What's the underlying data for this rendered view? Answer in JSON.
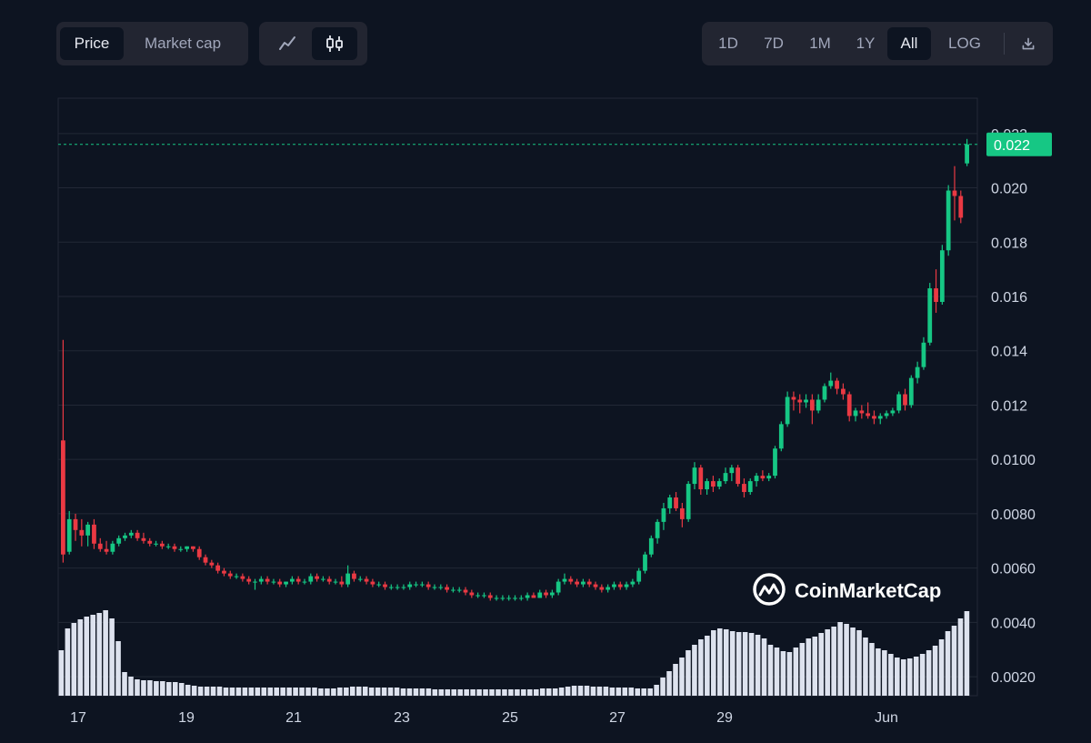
{
  "toolbar": {
    "price_label": "Price",
    "market_cap_label": "Market cap",
    "line_icon": "line-chart-icon",
    "candle_icon": "candlestick-icon",
    "ranges": [
      "1D",
      "7D",
      "1M",
      "1Y",
      "All",
      "LOG"
    ],
    "active_range": "All",
    "download_icon": "download-icon"
  },
  "watermark": "CoinMarketCap",
  "chart_data": {
    "type": "candlestick",
    "y_ticks": [
      "0.0020",
      "0.0040",
      "0.0060",
      "0.0080",
      "0.0100",
      "0.012",
      "0.014",
      "0.016",
      "0.018",
      "0.020",
      "0.022"
    ],
    "x_ticks": [
      "17",
      "19",
      "21",
      "23",
      "25",
      "27",
      "29",
      "Jun"
    ],
    "current_price_label": "0.022",
    "current_price": 0.0216,
    "ylim": [
      0.0013,
      0.0233
    ],
    "colors": {
      "up": "#16c784",
      "down": "#ea3943",
      "volume": "#dde2ee",
      "grid": "#222836"
    },
    "candles": [
      [
        0.0107,
        0.0144,
        0.0062,
        0.0065
      ],
      [
        0.0066,
        0.0081,
        0.0065,
        0.0078
      ],
      [
        0.0078,
        0.008,
        0.007,
        0.0074
      ],
      [
        0.0074,
        0.0078,
        0.0068,
        0.0072
      ],
      [
        0.0072,
        0.0077,
        0.0068,
        0.0076
      ],
      [
        0.0076,
        0.0078,
        0.0067,
        0.0069
      ],
      [
        0.0069,
        0.0071,
        0.0066,
        0.0067
      ],
      [
        0.0067,
        0.007,
        0.0065,
        0.0066
      ],
      [
        0.0066,
        0.007,
        0.0065,
        0.0069
      ],
      [
        0.0069,
        0.0072,
        0.0068,
        0.0071
      ],
      [
        0.0071,
        0.0073,
        0.007,
        0.0072
      ],
      [
        0.0072,
        0.0074,
        0.0071,
        0.0073
      ],
      [
        0.0073,
        0.0074,
        0.007,
        0.0071
      ],
      [
        0.0071,
        0.0073,
        0.0069,
        0.007
      ],
      [
        0.007,
        0.0071,
        0.0068,
        0.0069
      ],
      [
        0.0069,
        0.007,
        0.0068,
        0.0069
      ],
      [
        0.0069,
        0.007,
        0.0067,
        0.0068
      ],
      [
        0.0068,
        0.0069,
        0.0067,
        0.0068
      ],
      [
        0.0068,
        0.0069,
        0.0066,
        0.0067
      ],
      [
        0.0067,
        0.0068,
        0.0066,
        0.0067
      ],
      [
        0.0067,
        0.0068,
        0.0066,
        0.0068
      ],
      [
        0.0068,
        0.0068,
        0.0066,
        0.0067
      ],
      [
        0.0067,
        0.0068,
        0.0063,
        0.0064
      ],
      [
        0.0064,
        0.0065,
        0.0061,
        0.0062
      ],
      [
        0.0062,
        0.0063,
        0.006,
        0.0061
      ],
      [
        0.0061,
        0.0062,
        0.0058,
        0.0059
      ],
      [
        0.0059,
        0.006,
        0.0057,
        0.0058
      ],
      [
        0.0058,
        0.0059,
        0.0056,
        0.0057
      ],
      [
        0.0057,
        0.0058,
        0.0056,
        0.0057
      ],
      [
        0.0057,
        0.0058,
        0.0055,
        0.0056
      ],
      [
        0.0056,
        0.0057,
        0.0054,
        0.0055
      ],
      [
        0.0055,
        0.0056,
        0.0052,
        0.0055
      ],
      [
        0.0055,
        0.0057,
        0.0054,
        0.0056
      ],
      [
        0.0056,
        0.0057,
        0.0054,
        0.0055
      ],
      [
        0.0055,
        0.0056,
        0.0054,
        0.0055
      ],
      [
        0.0055,
        0.0056,
        0.0053,
        0.0054
      ],
      [
        0.0054,
        0.0055,
        0.0053,
        0.0055
      ],
      [
        0.0055,
        0.0057,
        0.0054,
        0.0056
      ],
      [
        0.0056,
        0.0057,
        0.0054,
        0.0055
      ],
      [
        0.0055,
        0.0056,
        0.0054,
        0.0055
      ],
      [
        0.0055,
        0.0058,
        0.0054,
        0.0057
      ],
      [
        0.0057,
        0.0058,
        0.0055,
        0.0056
      ],
      [
        0.0056,
        0.0057,
        0.0055,
        0.0056
      ],
      [
        0.0056,
        0.0057,
        0.0054,
        0.0055
      ],
      [
        0.0055,
        0.0056,
        0.0054,
        0.0055
      ],
      [
        0.0055,
        0.0057,
        0.0053,
        0.0054
      ],
      [
        0.0054,
        0.0061,
        0.0053,
        0.0058
      ],
      [
        0.0058,
        0.0059,
        0.0055,
        0.0056
      ],
      [
        0.0056,
        0.0057,
        0.0055,
        0.0056
      ],
      [
        0.0056,
        0.0057,
        0.0054,
        0.0055
      ],
      [
        0.0055,
        0.0056,
        0.0053,
        0.0054
      ],
      [
        0.0054,
        0.0055,
        0.0053,
        0.0054
      ],
      [
        0.0054,
        0.0055,
        0.0052,
        0.0053
      ],
      [
        0.0053,
        0.0054,
        0.0052,
        0.0053
      ],
      [
        0.0053,
        0.0054,
        0.0052,
        0.0053
      ],
      [
        0.0053,
        0.0054,
        0.0052,
        0.0053
      ],
      [
        0.0053,
        0.0055,
        0.0052,
        0.0054
      ],
      [
        0.0054,
        0.0055,
        0.0053,
        0.0054
      ],
      [
        0.0054,
        0.0055,
        0.0053,
        0.0054
      ],
      [
        0.0054,
        0.0055,
        0.0052,
        0.0053
      ],
      [
        0.0053,
        0.0054,
        0.0052,
        0.0053
      ],
      [
        0.0053,
        0.0054,
        0.0052,
        0.0053
      ],
      [
        0.0053,
        0.0054,
        0.0051,
        0.0052
      ],
      [
        0.0052,
        0.0053,
        0.0051,
        0.0052
      ],
      [
        0.0052,
        0.0053,
        0.0051,
        0.0052
      ],
      [
        0.0052,
        0.0053,
        0.005,
        0.0051
      ],
      [
        0.0051,
        0.0052,
        0.0049,
        0.005
      ],
      [
        0.005,
        0.0051,
        0.0049,
        0.005
      ],
      [
        0.005,
        0.0051,
        0.0049,
        0.005
      ],
      [
        0.005,
        0.0051,
        0.0048,
        0.0049
      ],
      [
        0.0049,
        0.005,
        0.0048,
        0.0049
      ],
      [
        0.0049,
        0.005,
        0.0048,
        0.0049
      ],
      [
        0.0049,
        0.005,
        0.0048,
        0.0049
      ],
      [
        0.0049,
        0.005,
        0.0048,
        0.0049
      ],
      [
        0.0049,
        0.005,
        0.0048,
        0.0049
      ],
      [
        0.0049,
        0.0051,
        0.0048,
        0.005
      ],
      [
        0.005,
        0.0051,
        0.0049,
        0.0049
      ],
      [
        0.0049,
        0.0052,
        0.0049,
        0.0051
      ],
      [
        0.0051,
        0.0052,
        0.0049,
        0.005
      ],
      [
        0.005,
        0.0052,
        0.0049,
        0.0051
      ],
      [
        0.0051,
        0.0056,
        0.005,
        0.0055
      ],
      [
        0.0055,
        0.0058,
        0.0054,
        0.0056
      ],
      [
        0.0056,
        0.0057,
        0.0054,
        0.0055
      ],
      [
        0.0055,
        0.0056,
        0.0053,
        0.0054
      ],
      [
        0.0054,
        0.0056,
        0.0053,
        0.0055
      ],
      [
        0.0055,
        0.0056,
        0.0053,
        0.0054
      ],
      [
        0.0054,
        0.0055,
        0.0052,
        0.0053
      ],
      [
        0.0053,
        0.0054,
        0.0051,
        0.0052
      ],
      [
        0.0052,
        0.0054,
        0.0051,
        0.0053
      ],
      [
        0.0053,
        0.0055,
        0.0052,
        0.0054
      ],
      [
        0.0054,
        0.0055,
        0.0052,
        0.0053
      ],
      [
        0.0053,
        0.0055,
        0.0052,
        0.0054
      ],
      [
        0.0054,
        0.0056,
        0.0053,
        0.0055
      ],
      [
        0.0055,
        0.006,
        0.0054,
        0.0059
      ],
      [
        0.0059,
        0.0066,
        0.0058,
        0.0065
      ],
      [
        0.0065,
        0.0072,
        0.0064,
        0.0071
      ],
      [
        0.0071,
        0.0078,
        0.0069,
        0.0077
      ],
      [
        0.0077,
        0.0084,
        0.0074,
        0.0082
      ],
      [
        0.0082,
        0.0087,
        0.008,
        0.0086
      ],
      [
        0.0086,
        0.0088,
        0.0081,
        0.0082
      ],
      [
        0.0082,
        0.0084,
        0.0075,
        0.0078
      ],
      [
        0.0078,
        0.0092,
        0.0077,
        0.0091
      ],
      [
        0.0091,
        0.0099,
        0.0089,
        0.0097
      ],
      [
        0.0097,
        0.0098,
        0.0087,
        0.0089
      ],
      [
        0.0089,
        0.0093,
        0.0087,
        0.0092
      ],
      [
        0.0092,
        0.0094,
        0.0088,
        0.009
      ],
      [
        0.009,
        0.0093,
        0.0089,
        0.0092
      ],
      [
        0.0092,
        0.0097,
        0.0091,
        0.0095
      ],
      [
        0.0095,
        0.0098,
        0.0092,
        0.0097
      ],
      [
        0.0097,
        0.0098,
        0.009,
        0.0091
      ],
      [
        0.0091,
        0.0093,
        0.0086,
        0.0088
      ],
      [
        0.0088,
        0.0093,
        0.0087,
        0.0092
      ],
      [
        0.0092,
        0.0095,
        0.009,
        0.0094
      ],
      [
        0.0094,
        0.0096,
        0.0092,
        0.0093
      ],
      [
        0.0093,
        0.0095,
        0.0092,
        0.0094
      ],
      [
        0.0094,
        0.0105,
        0.0093,
        0.0104
      ],
      [
        0.0104,
        0.0114,
        0.0103,
        0.0113
      ],
      [
        0.0113,
        0.0125,
        0.0112,
        0.0123
      ],
      [
        0.0123,
        0.0125,
        0.0118,
        0.0122
      ],
      [
        0.0122,
        0.0124,
        0.0117,
        0.0121
      ],
      [
        0.0121,
        0.0124,
        0.0119,
        0.0122
      ],
      [
        0.0122,
        0.0124,
        0.0113,
        0.0118
      ],
      [
        0.0118,
        0.0124,
        0.0117,
        0.0122
      ],
      [
        0.0122,
        0.0128,
        0.0121,
        0.0127
      ],
      [
        0.0127,
        0.0132,
        0.0126,
        0.0129
      ],
      [
        0.0129,
        0.013,
        0.0124,
        0.0126
      ],
      [
        0.0126,
        0.0128,
        0.0122,
        0.0124
      ],
      [
        0.0124,
        0.0125,
        0.0114,
        0.0116
      ],
      [
        0.0116,
        0.0119,
        0.0114,
        0.0118
      ],
      [
        0.0118,
        0.012,
        0.0115,
        0.0117
      ],
      [
        0.0117,
        0.0121,
        0.0115,
        0.0116
      ],
      [
        0.0116,
        0.0118,
        0.0113,
        0.0115
      ],
      [
        0.0115,
        0.0117,
        0.0113,
        0.0116
      ],
      [
        0.0116,
        0.0118,
        0.0115,
        0.0117
      ],
      [
        0.0117,
        0.0119,
        0.0116,
        0.0118
      ],
      [
        0.0118,
        0.0125,
        0.0117,
        0.0124
      ],
      [
        0.0124,
        0.0126,
        0.0118,
        0.012
      ],
      [
        0.012,
        0.0131,
        0.0119,
        0.013
      ],
      [
        0.013,
        0.0136,
        0.0128,
        0.0134
      ],
      [
        0.0134,
        0.0145,
        0.0133,
        0.0143
      ],
      [
        0.0143,
        0.0165,
        0.0142,
        0.0163
      ],
      [
        0.0163,
        0.017,
        0.0154,
        0.0158
      ],
      [
        0.0158,
        0.0179,
        0.0157,
        0.0177
      ],
      [
        0.0177,
        0.0201,
        0.0175,
        0.0199
      ],
      [
        0.0199,
        0.0208,
        0.0188,
        0.0197
      ],
      [
        0.0197,
        0.0199,
        0.0187,
        0.0189
      ],
      [
        0.0209,
        0.0218,
        0.0208,
        0.0216
      ]
    ],
    "volume": [
      0.5,
      0.74,
      0.8,
      0.84,
      0.87,
      0.89,
      0.91,
      0.94,
      0.85,
      0.6,
      0.26,
      0.21,
      0.18,
      0.17,
      0.17,
      0.16,
      0.16,
      0.15,
      0.15,
      0.14,
      0.12,
      0.11,
      0.1,
      0.1,
      0.1,
      0.1,
      0.09,
      0.09,
      0.09,
      0.09,
      0.09,
      0.09,
      0.09,
      0.09,
      0.09,
      0.09,
      0.09,
      0.09,
      0.09,
      0.09,
      0.09,
      0.08,
      0.08,
      0.08,
      0.09,
      0.09,
      0.1,
      0.1,
      0.1,
      0.09,
      0.09,
      0.09,
      0.09,
      0.09,
      0.08,
      0.08,
      0.08,
      0.08,
      0.08,
      0.07,
      0.07,
      0.07,
      0.07,
      0.07,
      0.07,
      0.07,
      0.07,
      0.07,
      0.07,
      0.07,
      0.07,
      0.07,
      0.07,
      0.07,
      0.07,
      0.07,
      0.08,
      0.08,
      0.08,
      0.09,
      0.1,
      0.11,
      0.11,
      0.11,
      0.1,
      0.1,
      0.1,
      0.09,
      0.09,
      0.09,
      0.09,
      0.08,
      0.08,
      0.08,
      0.12,
      0.2,
      0.27,
      0.35,
      0.42,
      0.5,
      0.56,
      0.62,
      0.66,
      0.72,
      0.74,
      0.73,
      0.71,
      0.7,
      0.7,
      0.69,
      0.67,
      0.63,
      0.56,
      0.53,
      0.49,
      0.48,
      0.53,
      0.58,
      0.63,
      0.65,
      0.69,
      0.73,
      0.76,
      0.81,
      0.79,
      0.75,
      0.72,
      0.64,
      0.58,
      0.52,
      0.5,
      0.46,
      0.42,
      0.4,
      0.41,
      0.43,
      0.46,
      0.5,
      0.55,
      0.62,
      0.71,
      0.77,
      0.85,
      0.93
    ]
  }
}
